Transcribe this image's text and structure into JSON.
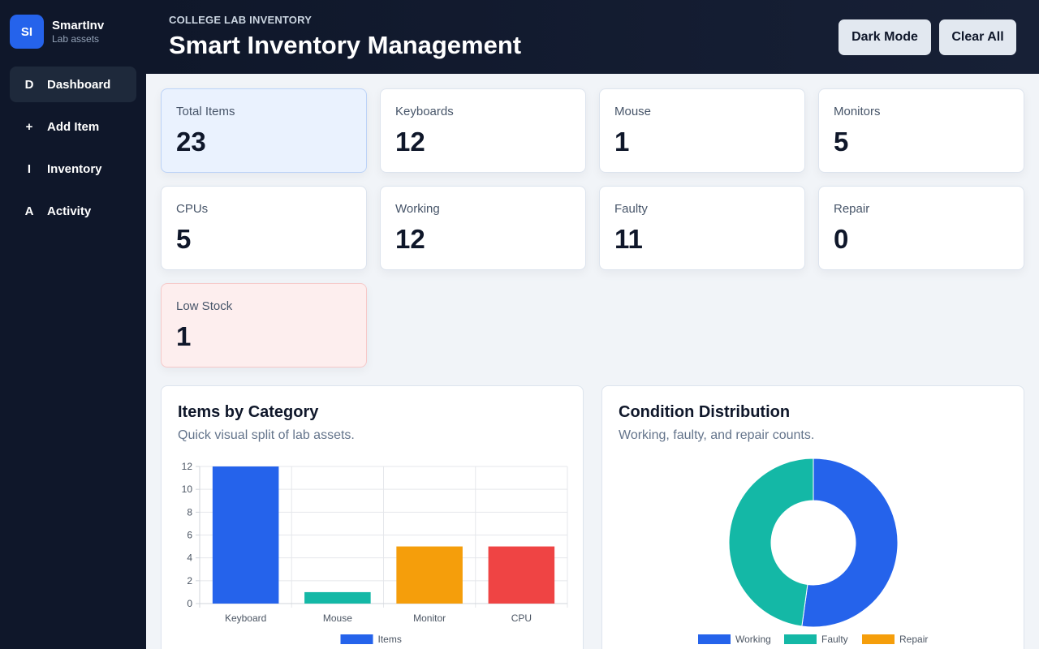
{
  "brand": {
    "logo": "SI",
    "name": "SmartInv",
    "subtitle": "Lab assets"
  },
  "nav": [
    {
      "icon": "D",
      "label": "Dashboard",
      "active": true
    },
    {
      "icon": "+",
      "label": "Add Item"
    },
    {
      "icon": "I",
      "label": "Inventory"
    },
    {
      "icon": "A",
      "label": "Activity"
    }
  ],
  "header": {
    "eyebrow": "COLLEGE LAB INVENTORY",
    "title": "Smart Inventory Management",
    "dark_mode_label": "Dark Mode",
    "clear_all_label": "Clear All"
  },
  "stats": [
    {
      "label": "Total Items",
      "value": "23"
    },
    {
      "label": "Keyboards",
      "value": "12"
    },
    {
      "label": "Mouse",
      "value": "1"
    },
    {
      "label": "Monitors",
      "value": "5"
    },
    {
      "label": "CPUs",
      "value": "5"
    },
    {
      "label": "Working",
      "value": "12"
    },
    {
      "label": "Faulty",
      "value": "11"
    },
    {
      "label": "Repair",
      "value": "0"
    },
    {
      "label": "Low Stock",
      "value": "1"
    }
  ],
  "panels": {
    "category": {
      "title": "Items by Category",
      "subtitle": "Quick visual split of lab assets."
    },
    "condition": {
      "title": "Condition Distribution",
      "subtitle": "Working, faulty, and repair counts."
    }
  },
  "colors": {
    "blue": "#2563eb",
    "teal": "#14b8a6",
    "amber": "#f59e0b",
    "red": "#ef4444"
  },
  "chart_data": [
    {
      "type": "bar",
      "categories": [
        "Keyboard",
        "Mouse",
        "Monitor",
        "CPU"
      ],
      "series": [
        {
          "name": "Items",
          "values": [
            12,
            1,
            5,
            5
          ]
        }
      ],
      "bar_colors": [
        "#2563eb",
        "#14b8a6",
        "#f59e0b",
        "#ef4444"
      ],
      "legend_color": "#2563eb",
      "ylim": [
        0,
        12
      ],
      "yticks": [
        0,
        2,
        4,
        6,
        8,
        10,
        12
      ],
      "grid": true,
      "legend": "bottom"
    },
    {
      "type": "pie",
      "donut": true,
      "labels": [
        "Working",
        "Faulty",
        "Repair"
      ],
      "values": [
        12,
        11,
        0
      ],
      "colors": [
        "#2563eb",
        "#14b8a6",
        "#f59e0b"
      ],
      "legend": "bottom"
    }
  ]
}
